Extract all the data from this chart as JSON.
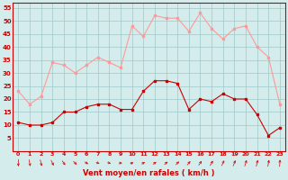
{
  "x": [
    0,
    1,
    2,
    3,
    4,
    5,
    6,
    7,
    8,
    9,
    10,
    11,
    12,
    13,
    14,
    15,
    16,
    17,
    18,
    19,
    20,
    21,
    22,
    23
  ],
  "wind_avg": [
    11,
    10,
    10,
    11,
    15,
    15,
    17,
    18,
    18,
    16,
    16,
    23,
    27,
    27,
    26,
    16,
    20,
    19,
    22,
    20,
    20,
    14,
    6,
    9
  ],
  "wind_gust": [
    23,
    18,
    21,
    34,
    33,
    30,
    33,
    36,
    34,
    32,
    48,
    44,
    52,
    51,
    51,
    46,
    53,
    47,
    43,
    47,
    48,
    40,
    36,
    18
  ],
  "bg_color": "#d4ecec",
  "grid_color": "#a0c8c8",
  "line_color_avg": "#cc0000",
  "line_color_gust": "#ff9999",
  "xlabel": "Vent moyen/en rafales ( km/h )",
  "ylim": [
    0,
    57
  ],
  "yticks": [
    5,
    10,
    15,
    20,
    25,
    30,
    35,
    40,
    45,
    50,
    55
  ],
  "xlim": [
    -0.5,
    23.5
  ],
  "arrow_angles": [
    0,
    15,
    20,
    35,
    45,
    55,
    65,
    75,
    80,
    90,
    100,
    110,
    115,
    120,
    125,
    130,
    135,
    140,
    145,
    150,
    155,
    160,
    165,
    175
  ]
}
